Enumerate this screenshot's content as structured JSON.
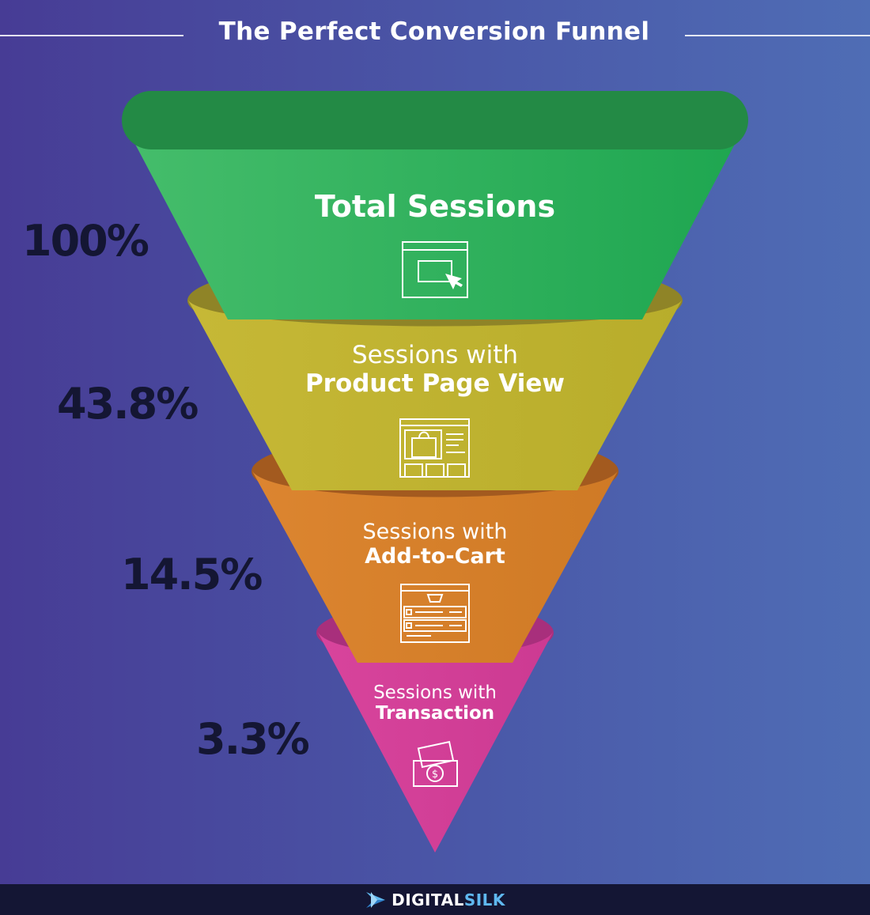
{
  "title": "The Perfect Conversion Funnel",
  "stages": [
    {
      "percent": "100%",
      "line1": "",
      "line2": "Total Sessions",
      "icon": "browser-cursor-icon",
      "color": "#2fb05a"
    },
    {
      "percent": "43.8%",
      "line1": "Sessions with",
      "line2": "Product Page View",
      "icon": "product-page-icon",
      "color": "#c0b32f"
    },
    {
      "percent": "14.5%",
      "line1": "Sessions with",
      "line2": "Add-to-Cart",
      "icon": "cart-page-icon",
      "color": "#d67f2a"
    },
    {
      "percent": "3.3%",
      "line1": "Sessions with",
      "line2": "Transaction",
      "icon": "payment-icon",
      "color": "#d23e96"
    }
  ],
  "brand": {
    "part1": "DIGITAL",
    "part2": "SILK",
    "logo": "digitalsilk-logo-icon"
  }
}
